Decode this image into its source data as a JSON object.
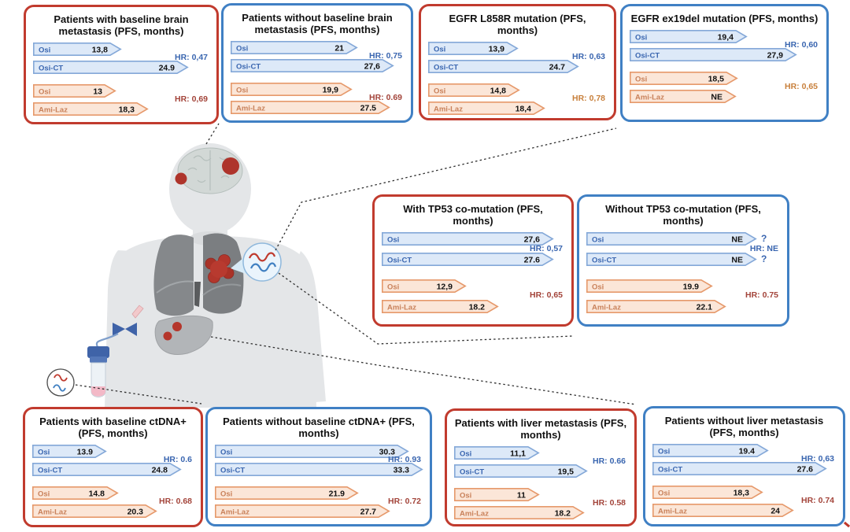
{
  "figure": {
    "colors": {
      "panel_red": "#c13b2e",
      "panel_blue": "#4080c4",
      "bar_blue_fill": "#dde9f8",
      "bar_blue_stroke": "#84a8d8",
      "bar_blue_label": "#3a66b0",
      "bar_orange_fill": "#fbe6d8",
      "bar_orange_stroke": "#e6996b",
      "bar_orange_label": "#c9815a",
      "hr_blue": "#3a66b0",
      "hr_red": "#a3443a",
      "hr_orange": "#c8803c",
      "value_text": "#111111",
      "corner_mark": "#c0392b"
    },
    "illustration": {
      "body": "human-torso-silhouette",
      "brain": "brain-with-two-metastases",
      "lungs": "lungs-with-primary-tumor",
      "liver": "liver-with-two-metastases",
      "blood_draw": "iv-line-and-blood-collection-tube",
      "ctdna_callouts": [
        "ctdna-circle-large",
        "ctdna-circle-small"
      ]
    },
    "panels": [
      {
        "id": "brain-met-with",
        "border": "red",
        "tall": false,
        "title": "Patients with baseline brain metastasis (PFS, months)",
        "bars": [
          {
            "label": "Osi",
            "value": "13,8",
            "group": "blue",
            "len": 0.5
          },
          {
            "label": "Osi-CT",
            "value": "24.9",
            "group": "blue",
            "len": 0.88
          },
          {
            "label": "Osi",
            "value": "13",
            "group": "orange",
            "len": 0.47
          },
          {
            "label": "Ami-Laz",
            "value": "18,3",
            "group": "orange",
            "len": 0.65
          }
        ],
        "hr1": {
          "text": "HR: 0,47",
          "color": "blue"
        },
        "hr2": {
          "text": "HR: 0,69",
          "color": "red"
        }
      },
      {
        "id": "brain-met-without",
        "border": "blue",
        "tall": false,
        "title": "Patients without baseline brain metastasis (PFS, months)",
        "bars": [
          {
            "label": "Osi",
            "value": "21",
            "group": "blue",
            "len": 0.73
          },
          {
            "label": "Osi-CT",
            "value": "27,6",
            "group": "blue",
            "len": 0.94
          },
          {
            "label": "Osi",
            "value": "19,9",
            "group": "orange",
            "len": 0.7
          },
          {
            "label": "Ami-Laz",
            "value": "27.5",
            "group": "orange",
            "len": 0.92
          }
        ],
        "hr1": {
          "text": "HR: 0,75",
          "color": "blue"
        },
        "hr2": {
          "text": "HR: 0.69",
          "color": "red"
        }
      },
      {
        "id": "egfr-l858r",
        "border": "red",
        "tall": false,
        "title": "EGFR L858R mutation (PFS, months)",
        "bars": [
          {
            "label": "Osi",
            "value": "13,9",
            "group": "blue",
            "len": 0.5
          },
          {
            "label": "Osi-CT",
            "value": "24.7",
            "group": "blue",
            "len": 0.84
          },
          {
            "label": "Osi",
            "value": "14,8",
            "group": "orange",
            "len": 0.51
          },
          {
            "label": "Ami-Laz",
            "value": "18,4",
            "group": "orange",
            "len": 0.65
          }
        ],
        "hr1": {
          "text": "HR: 0,63",
          "color": "blue"
        },
        "hr2": {
          "text": "HR: 0,78",
          "color": "orange"
        }
      },
      {
        "id": "egfr-ex19del",
        "border": "blue",
        "tall": false,
        "title": "EGFR ex19del mutation (PFS, months)",
        "bars": [
          {
            "label": "Osi",
            "value": "19,4",
            "group": "blue",
            "len": 0.62
          },
          {
            "label": "Osi-CT",
            "value": "27,9",
            "group": "blue",
            "len": 0.88
          },
          {
            "label": "Osi",
            "value": "18,5",
            "group": "orange",
            "len": 0.57
          },
          {
            "label": "Ami-Laz",
            "value": "NE",
            "group": "orange",
            "len": 0.56
          }
        ],
        "hr1": {
          "text": "HR: 0,60",
          "color": "blue"
        },
        "hr2": {
          "text": "HR: 0,65",
          "color": "orange"
        }
      },
      {
        "id": "tp53-with",
        "border": "red",
        "tall": true,
        "title": "With TP53 co-mutation (PFS, months)",
        "bars": [
          {
            "label": "Osi",
            "value": "27,6",
            "group": "blue",
            "len": 0.94
          },
          {
            "label": "Osi-CT",
            "value": "27.6",
            "group": "blue",
            "len": 0.94
          },
          {
            "label": "Osi",
            "value": "12,9",
            "group": "orange",
            "len": 0.46
          },
          {
            "label": "Ami-Laz",
            "value": "18.2",
            "group": "orange",
            "len": 0.64
          }
        ],
        "hr1": {
          "text": "HR: 0,57",
          "color": "blue"
        },
        "hr2": {
          "text": "HR: 0,65",
          "color": "red"
        }
      },
      {
        "id": "tp53-without",
        "border": "blue",
        "tall": true,
        "title": "Without TP53 co-mutation (PFS, months)",
        "bars": [
          {
            "label": "Osi",
            "value": "NE",
            "group": "blue",
            "len": 0.88,
            "suffix": "?"
          },
          {
            "label": "Osi-CT",
            "value": "NE",
            "group": "blue",
            "len": 0.88,
            "suffix": "?"
          },
          {
            "label": "Osi",
            "value": "19.9",
            "group": "orange",
            "len": 0.65
          },
          {
            "label": "Ami-Laz",
            "value": "22.1",
            "group": "orange",
            "len": 0.72
          }
        ],
        "hr1": {
          "text": "HR: NE",
          "color": "blue"
        },
        "hr2": {
          "text": "HR: 0.75",
          "color": "red"
        }
      },
      {
        "id": "ctdna-pos",
        "border": "red",
        "tall": false,
        "title": "Patients with baseline ctDNA+ (PFS, months)",
        "bars": [
          {
            "label": "Osi",
            "value": "13.9",
            "group": "blue",
            "len": 0.46
          },
          {
            "label": "Osi-CT",
            "value": "24.8",
            "group": "blue",
            "len": 0.92
          },
          {
            "label": "Osi",
            "value": "14.8",
            "group": "orange",
            "len": 0.53
          },
          {
            "label": "Ami-Laz",
            "value": "20.3",
            "group": "orange",
            "len": 0.77
          }
        ],
        "hr1": {
          "text": "HR: 0.6",
          "color": "blue"
        },
        "hr2": {
          "text": "HR: 0.68",
          "color": "red"
        }
      },
      {
        "id": "ctdna-neg",
        "border": "blue",
        "tall": false,
        "title": "Patients without baseline ctDNA+ (PFS, months)",
        "bars": [
          {
            "label": "Osi",
            "value": "30.3",
            "group": "blue",
            "len": 0.93
          },
          {
            "label": "Osi-CT",
            "value": "33.3",
            "group": "blue",
            "len": 1.0
          },
          {
            "label": "Osi",
            "value": "21.9",
            "group": "orange",
            "len": 0.69
          },
          {
            "label": "Ami-Laz",
            "value": "27.7",
            "group": "orange",
            "len": 0.84
          }
        ],
        "hr1": {
          "text": "HR: 0.93",
          "color": "blue"
        },
        "hr2": {
          "text": "HR: 0.72",
          "color": "red"
        }
      },
      {
        "id": "liver-met-with",
        "border": "red",
        "tall": false,
        "title": "Patients with liver metastasis (PFS, months)",
        "bars": [
          {
            "label": "Osi",
            "value": "11,1",
            "group": "blue",
            "len": 0.49
          },
          {
            "label": "Osi-CT",
            "value": "19,5",
            "group": "blue",
            "len": 0.77
          },
          {
            "label": "Osi",
            "value": "11",
            "group": "orange",
            "len": 0.49
          },
          {
            "label": "Ami-Laz",
            "value": "18.2",
            "group": "orange",
            "len": 0.75
          }
        ],
        "hr1": {
          "text": "HR: 0.66",
          "color": "blue"
        },
        "hr2": {
          "text": "HR: 0.58",
          "color": "red"
        }
      },
      {
        "id": "liver-met-without",
        "border": "blue",
        "tall": false,
        "title": "Patients without liver metastasis (PFS, months)",
        "bars": [
          {
            "label": "Osi",
            "value": "19.4",
            "group": "blue",
            "len": 0.63
          },
          {
            "label": "Osi-CT",
            "value": "27.6",
            "group": "blue",
            "len": 0.95
          },
          {
            "label": "Osi",
            "value": "18,3",
            "group": "orange",
            "len": 0.6
          },
          {
            "label": "Ami-Laz",
            "value": "24",
            "group": "orange",
            "len": 0.77
          }
        ],
        "hr1": {
          "text": "HR: 0,63",
          "color": "blue"
        },
        "hr2": {
          "text": "HR: 0.74",
          "color": "red"
        }
      }
    ]
  },
  "chart_data": [
    {
      "type": "bar",
      "title": "Patients with baseline brain metastasis (PFS, months)",
      "categories": [
        "Osi",
        "Osi-CT",
        "Osi",
        "Ami-Laz"
      ],
      "values": [
        13.8,
        24.9,
        13,
        18.3
      ],
      "unit": "months",
      "metric": "PFS",
      "hr": [
        {
          "text": "HR: 0,47",
          "compares": "Osi-CT vs Osi"
        },
        {
          "text": "HR: 0,69",
          "compares": "Ami-Laz vs Osi"
        }
      ]
    },
    {
      "type": "bar",
      "title": "Patients without baseline brain metastasis (PFS, months)",
      "categories": [
        "Osi",
        "Osi-CT",
        "Osi",
        "Ami-Laz"
      ],
      "values": [
        21,
        27.6,
        19.9,
        27.5
      ],
      "unit": "months",
      "metric": "PFS",
      "hr": [
        {
          "text": "HR: 0,75",
          "compares": "Osi-CT vs Osi"
        },
        {
          "text": "HR: 0.69",
          "compares": "Ami-Laz vs Osi"
        }
      ]
    },
    {
      "type": "bar",
      "title": "EGFR L858R mutation (PFS, months)",
      "categories": [
        "Osi",
        "Osi-CT",
        "Osi",
        "Ami-Laz"
      ],
      "values": [
        13.9,
        24.7,
        14.8,
        18.4
      ],
      "unit": "months",
      "metric": "PFS",
      "hr": [
        {
          "text": "HR: 0,63",
          "compares": "Osi-CT vs Osi"
        },
        {
          "text": "HR: 0,78",
          "compares": "Ami-Laz vs Osi"
        }
      ]
    },
    {
      "type": "bar",
      "title": "EGFR ex19del mutation (PFS, months)",
      "categories": [
        "Osi",
        "Osi-CT",
        "Osi",
        "Ami-Laz"
      ],
      "values": [
        19.4,
        27.9,
        18.5,
        "NE"
      ],
      "unit": "months",
      "metric": "PFS",
      "hr": [
        {
          "text": "HR: 0,60",
          "compares": "Osi-CT vs Osi"
        },
        {
          "text": "HR: 0,65",
          "compares": "Ami-Laz vs Osi"
        }
      ]
    },
    {
      "type": "bar",
      "title": "With TP53 co-mutation (PFS, months)",
      "categories": [
        "Osi",
        "Osi-CT",
        "Osi",
        "Ami-Laz"
      ],
      "values": [
        27.6,
        27.6,
        12.9,
        18.2
      ],
      "unit": "months",
      "metric": "PFS",
      "hr": [
        {
          "text": "HR: 0,57",
          "compares": "Osi-CT vs Osi"
        },
        {
          "text": "HR: 0,65",
          "compares": "Ami-Laz vs Osi"
        }
      ]
    },
    {
      "type": "bar",
      "title": "Without TP53 co-mutation (PFS, months)",
      "categories": [
        "Osi",
        "Osi-CT",
        "Osi",
        "Ami-Laz"
      ],
      "values": [
        "NE",
        "NE",
        19.9,
        22.1
      ],
      "unit": "months",
      "metric": "PFS",
      "hr": [
        {
          "text": "HR: NE",
          "compares": "Osi-CT vs Osi"
        },
        {
          "text": "HR: 0.75",
          "compares": "Ami-Laz vs Osi"
        }
      ]
    },
    {
      "type": "bar",
      "title": "Patients with baseline ctDNA+ (PFS, months)",
      "categories": [
        "Osi",
        "Osi-CT",
        "Osi",
        "Ami-Laz"
      ],
      "values": [
        13.9,
        24.8,
        14.8,
        20.3
      ],
      "unit": "months",
      "metric": "PFS",
      "hr": [
        {
          "text": "HR: 0.6",
          "compares": "Osi-CT vs Osi"
        },
        {
          "text": "HR: 0.68",
          "compares": "Ami-Laz vs Osi"
        }
      ]
    },
    {
      "type": "bar",
      "title": "Patients without baseline ctDNA+ (PFS, months)",
      "categories": [
        "Osi",
        "Osi-CT",
        "Osi",
        "Ami-Laz"
      ],
      "values": [
        30.3,
        33.3,
        21.9,
        27.7
      ],
      "unit": "months",
      "metric": "PFS",
      "hr": [
        {
          "text": "HR: 0.93",
          "compares": "Osi-CT vs Osi"
        },
        {
          "text": "HR: 0.72",
          "compares": "Ami-Laz vs Osi"
        }
      ]
    },
    {
      "type": "bar",
      "title": "Patients with liver metastasis (PFS, months)",
      "categories": [
        "Osi",
        "Osi-CT",
        "Osi",
        "Ami-Laz"
      ],
      "values": [
        11.1,
        19.5,
        11,
        18.2
      ],
      "unit": "months",
      "metric": "PFS",
      "hr": [
        {
          "text": "HR: 0.66",
          "compares": "Osi-CT vs Osi"
        },
        {
          "text": "HR: 0.58",
          "compares": "Ami-Laz vs Osi"
        }
      ]
    },
    {
      "type": "bar",
      "title": "Patients without liver metastasis (PFS, months)",
      "categories": [
        "Osi",
        "Osi-CT",
        "Osi",
        "Ami-Laz"
      ],
      "values": [
        19.4,
        27.6,
        18.3,
        24
      ],
      "unit": "months",
      "metric": "PFS",
      "hr": [
        {
          "text": "HR: 0,63",
          "compares": "Osi-CT vs Osi"
        },
        {
          "text": "HR: 0.74",
          "compares": "Ami-Laz vs Osi"
        }
      ]
    }
  ]
}
